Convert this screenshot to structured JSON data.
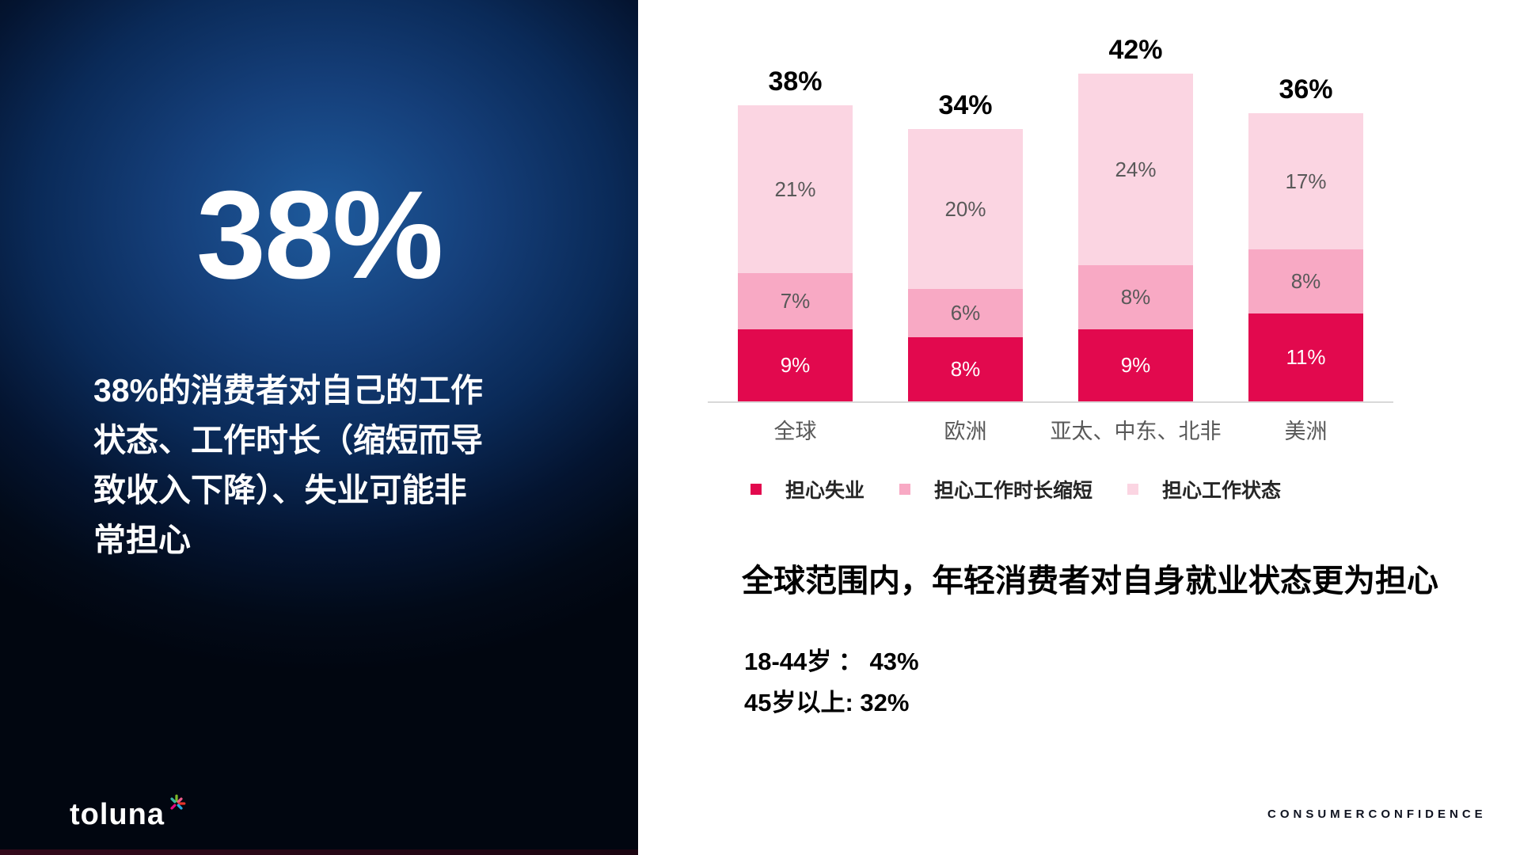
{
  "left_panel": {
    "headline": "38%",
    "description": "38%的消费者对自己的工作\n状态、工作时长（缩短而导\n致收入下降）、失业可能非\n常担心",
    "logo_text": "toluna"
  },
  "right_panel": {
    "insight_title": "全球范围内，年轻消费者对自身就业状态更为担心",
    "stats": [
      "18-44岁 ： 43%",
      "45岁以上:  32%"
    ],
    "footer": "CONSUMERCONFIDENCE"
  },
  "chart_data": {
    "type": "bar",
    "stacked": true,
    "grid": false,
    "legend_position": "bottom",
    "categories": [
      "全球",
      "欧洲",
      "亚太、中东、北非",
      "美洲"
    ],
    "series": [
      {
        "key": "worried-unemployment",
        "name": "担心失业",
        "color": "#e2094e",
        "label_color": "#ffffff",
        "values": [
          9,
          8,
          9,
          11
        ]
      },
      {
        "key": "worried-reduced-hours",
        "name": "担心工作时长缩短",
        "color": "#f8a9c4",
        "label_color": "#595959",
        "values": [
          7,
          6,
          8,
          8
        ]
      },
      {
        "key": "worried-job-status",
        "name": "担心工作状态",
        "color": "#fbd5e2",
        "label_color": "#595959",
        "values": [
          21,
          20,
          24,
          17
        ]
      }
    ],
    "totals": [
      "38%",
      "34%",
      "42%",
      "36%"
    ],
    "value_suffix": "%",
    "axis_color": "#d9d9d9"
  }
}
